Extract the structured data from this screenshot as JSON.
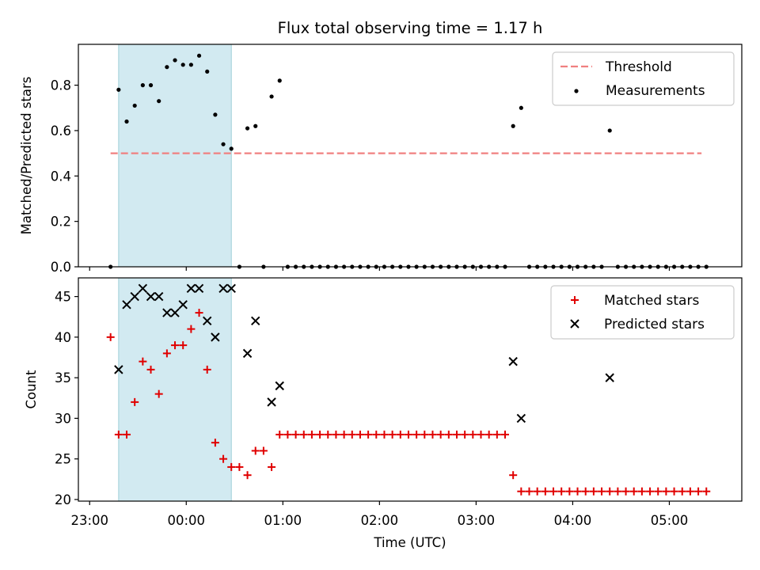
{
  "title": "Flux total observing time = 1.17 h",
  "colors": {
    "threshold": "#f08080",
    "measurement": "#000000",
    "matched": "#e00000",
    "predicted": "#000000",
    "shade": "#add8e6"
  },
  "chart_data": [
    {
      "type": "scatter",
      "ylabel": "Matched/Predicted stars",
      "xlim": [
        "22:53",
        "05:45"
      ],
      "ylim": [
        0,
        0.98
      ],
      "yticks": [
        0.0,
        0.2,
        0.4,
        0.6,
        0.8
      ],
      "ytick_labels": [
        "0.0",
        "0.2",
        "0.4",
        "0.6",
        "0.8"
      ],
      "shaded_span": [
        "23:18",
        "00:28"
      ],
      "legend": {
        "placement": "top-right",
        "entries": [
          "Threshold",
          "Measurements"
        ]
      },
      "threshold": {
        "name": "Threshold",
        "y": 0.5,
        "x": [
          "23:13",
          "05:20"
        ],
        "style": "dashed"
      },
      "series": [
        {
          "name": "Measurements",
          "marker": "dot",
          "points": [
            [
              "23:13",
              0.0
            ],
            [
              "23:18",
              0.78
            ],
            [
              "23:23",
              0.64
            ],
            [
              "23:28",
              0.71
            ],
            [
              "23:33",
              0.8
            ],
            [
              "23:38",
              0.8
            ],
            [
              "23:43",
              0.73
            ],
            [
              "23:48",
              0.88
            ],
            [
              "23:53",
              0.91
            ],
            [
              "23:58",
              0.89
            ],
            [
              "00:03",
              0.89
            ],
            [
              "00:08",
              0.93
            ],
            [
              "00:13",
              0.86
            ],
            [
              "00:18",
              0.67
            ],
            [
              "00:23",
              0.54
            ],
            [
              "00:28",
              0.52
            ],
            [
              "00:33",
              0.0
            ],
            [
              "00:38",
              0.61
            ],
            [
              "00:43",
              0.62
            ],
            [
              "00:48",
              0.0
            ],
            [
              "00:53",
              0.75
            ],
            [
              "00:58",
              0.82
            ],
            [
              "01:03",
              0.0
            ],
            [
              "01:08",
              0.0
            ],
            [
              "01:13",
              0.0
            ],
            [
              "01:18",
              0.0
            ],
            [
              "01:23",
              0.0
            ],
            [
              "01:28",
              0.0
            ],
            [
              "01:33",
              0.0
            ],
            [
              "01:38",
              0.0
            ],
            [
              "01:43",
              0.0
            ],
            [
              "01:48",
              0.0
            ],
            [
              "01:53",
              0.0
            ],
            [
              "01:58",
              0.0
            ],
            [
              "02:03",
              0.0
            ],
            [
              "02:08",
              0.0
            ],
            [
              "02:13",
              0.0
            ],
            [
              "02:18",
              0.0
            ],
            [
              "02:23",
              0.0
            ],
            [
              "02:28",
              0.0
            ],
            [
              "02:33",
              0.0
            ],
            [
              "02:38",
              0.0
            ],
            [
              "02:43",
              0.0
            ],
            [
              "02:48",
              0.0
            ],
            [
              "02:53",
              0.0
            ],
            [
              "02:58",
              0.0
            ],
            [
              "03:03",
              0.0
            ],
            [
              "03:08",
              0.0
            ],
            [
              "03:13",
              0.0
            ],
            [
              "03:18",
              0.0
            ],
            [
              "03:23",
              0.62
            ],
            [
              "03:28",
              0.7
            ],
            [
              "03:33",
              0.0
            ],
            [
              "03:38",
              0.0
            ],
            [
              "03:43",
              0.0
            ],
            [
              "03:48",
              0.0
            ],
            [
              "03:53",
              0.0
            ],
            [
              "03:58",
              0.0
            ],
            [
              "04:03",
              0.0
            ],
            [
              "04:08",
              0.0
            ],
            [
              "04:13",
              0.0
            ],
            [
              "04:18",
              0.0
            ],
            [
              "04:23",
              0.6
            ],
            [
              "04:28",
              0.0
            ],
            [
              "04:33",
              0.0
            ],
            [
              "04:38",
              0.0
            ],
            [
              "04:43",
              0.0
            ],
            [
              "04:48",
              0.0
            ],
            [
              "04:53",
              0.0
            ],
            [
              "04:58",
              0.0
            ],
            [
              "05:03",
              0.0
            ],
            [
              "05:08",
              0.0
            ],
            [
              "05:13",
              0.0
            ],
            [
              "05:18",
              0.0
            ],
            [
              "05:23",
              0.0
            ]
          ]
        }
      ]
    },
    {
      "type": "scatter",
      "xlabel": "Time (UTC)",
      "ylabel": "Count",
      "xlim": [
        "22:53",
        "05:45"
      ],
      "ylim": [
        19.8,
        47.3
      ],
      "xticks": [
        "23:00",
        "00:00",
        "01:00",
        "02:00",
        "03:00",
        "04:00",
        "05:00"
      ],
      "yticks": [
        20,
        25,
        30,
        35,
        40,
        45
      ],
      "shaded_span": [
        "23:18",
        "00:28"
      ],
      "legend": {
        "placement": "top-right",
        "entries": [
          "Matched stars",
          "Predicted stars"
        ]
      },
      "series": [
        {
          "name": "Matched stars",
          "marker": "plus",
          "points": [
            [
              "23:13",
              40
            ],
            [
              "23:18",
              28
            ],
            [
              "23:23",
              28
            ],
            [
              "23:28",
              32
            ],
            [
              "23:33",
              37
            ],
            [
              "23:38",
              36
            ],
            [
              "23:43",
              33
            ],
            [
              "23:48",
              38
            ],
            [
              "23:53",
              39
            ],
            [
              "23:58",
              39
            ],
            [
              "00:03",
              41
            ],
            [
              "00:08",
              43
            ],
            [
              "00:13",
              36
            ],
            [
              "00:18",
              27
            ],
            [
              "00:23",
              25
            ],
            [
              "00:28",
              24
            ],
            [
              "00:33",
              24
            ],
            [
              "00:38",
              23
            ],
            [
              "00:43",
              26
            ],
            [
              "00:48",
              26
            ],
            [
              "00:53",
              24
            ],
            [
              "00:58",
              28
            ],
            [
              "01:03",
              28
            ],
            [
              "01:08",
              28
            ],
            [
              "01:13",
              28
            ],
            [
              "01:18",
              28
            ],
            [
              "01:23",
              28
            ],
            [
              "01:28",
              28
            ],
            [
              "01:33",
              28
            ],
            [
              "01:38",
              28
            ],
            [
              "01:43",
              28
            ],
            [
              "01:48",
              28
            ],
            [
              "01:53",
              28
            ],
            [
              "01:58",
              28
            ],
            [
              "02:03",
              28
            ],
            [
              "02:08",
              28
            ],
            [
              "02:13",
              28
            ],
            [
              "02:18",
              28
            ],
            [
              "02:23",
              28
            ],
            [
              "02:28",
              28
            ],
            [
              "02:33",
              28
            ],
            [
              "02:38",
              28
            ],
            [
              "02:43",
              28
            ],
            [
              "02:48",
              28
            ],
            [
              "02:53",
              28
            ],
            [
              "02:58",
              28
            ],
            [
              "03:03",
              28
            ],
            [
              "03:08",
              28
            ],
            [
              "03:13",
              28
            ],
            [
              "03:18",
              28
            ],
            [
              "03:23",
              23
            ],
            [
              "03:28",
              21
            ],
            [
              "03:33",
              21
            ],
            [
              "03:38",
              21
            ],
            [
              "03:43",
              21
            ],
            [
              "03:48",
              21
            ],
            [
              "03:53",
              21
            ],
            [
              "03:58",
              21
            ],
            [
              "04:03",
              21
            ],
            [
              "04:08",
              21
            ],
            [
              "04:13",
              21
            ],
            [
              "04:18",
              21
            ],
            [
              "04:23",
              21
            ],
            [
              "04:28",
              21
            ],
            [
              "04:33",
              21
            ],
            [
              "04:38",
              21
            ],
            [
              "04:43",
              21
            ],
            [
              "04:48",
              21
            ],
            [
              "04:53",
              21
            ],
            [
              "04:58",
              21
            ],
            [
              "05:03",
              21
            ],
            [
              "05:08",
              21
            ],
            [
              "05:13",
              21
            ],
            [
              "05:18",
              21
            ],
            [
              "05:23",
              21
            ]
          ]
        },
        {
          "name": "Predicted stars",
          "marker": "x",
          "points": [
            [
              "23:18",
              36
            ],
            [
              "23:23",
              44
            ],
            [
              "23:28",
              45
            ],
            [
              "23:33",
              46
            ],
            [
              "23:38",
              45
            ],
            [
              "23:43",
              45
            ],
            [
              "23:48",
              43
            ],
            [
              "23:53",
              43
            ],
            [
              "23:58",
              44
            ],
            [
              "00:03",
              46
            ],
            [
              "00:08",
              46
            ],
            [
              "00:13",
              42
            ],
            [
              "00:18",
              40
            ],
            [
              "00:23",
              46
            ],
            [
              "00:28",
              46
            ],
            [
              "00:38",
              38
            ],
            [
              "00:43",
              42
            ],
            [
              "00:53",
              32
            ],
            [
              "00:58",
              34
            ],
            [
              "03:23",
              37
            ],
            [
              "03:28",
              30
            ],
            [
              "04:23",
              35
            ]
          ]
        }
      ]
    }
  ]
}
